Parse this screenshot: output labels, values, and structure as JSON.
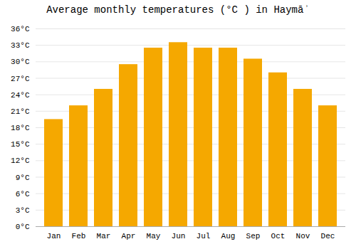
{
  "chart_data": {
    "type": "bar",
    "title": "Average monthly temperatures (°C ) in Haymāʾ",
    "categories": [
      "Jan",
      "Feb",
      "Mar",
      "Apr",
      "May",
      "Jun",
      "Jul",
      "Aug",
      "Sep",
      "Oct",
      "Nov",
      "Dec"
    ],
    "values": [
      19.5,
      22,
      25,
      29.5,
      32.5,
      33.5,
      32.5,
      32.5,
      30.5,
      28,
      25,
      22
    ],
    "color": "#F5A800",
    "ylim": [
      0,
      36
    ],
    "yticks": [
      {
        "value": 0,
        "label": "0°C"
      },
      {
        "value": 3,
        "label": "3°C"
      },
      {
        "value": 6,
        "label": "6°C"
      },
      {
        "value": 9,
        "label": "9°C"
      },
      {
        "value": 12,
        "label": "12°C"
      },
      {
        "value": 15,
        "label": "15°C"
      },
      {
        "value": 18,
        "label": "18°C"
      },
      {
        "value": 21,
        "label": "21°C"
      },
      {
        "value": 24,
        "label": "24°C"
      },
      {
        "value": 27,
        "label": "27°C"
      },
      {
        "value": 30,
        "label": "30°C"
      },
      {
        "value": 33,
        "label": "33°C"
      },
      {
        "value": 36,
        "label": "36°C"
      }
    ],
    "grid": true
  }
}
